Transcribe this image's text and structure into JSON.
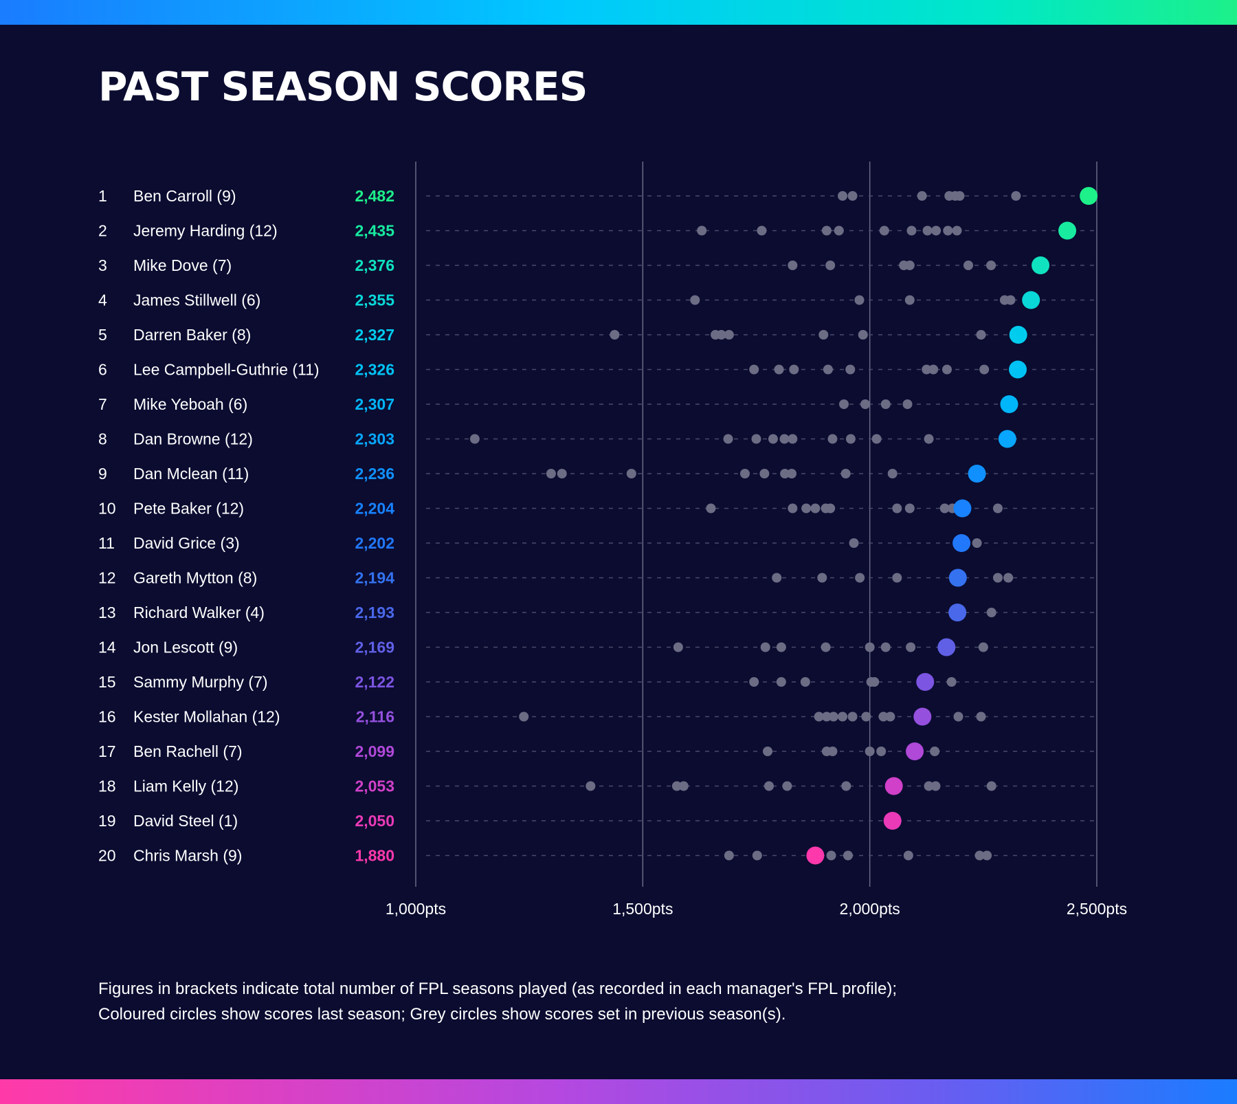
{
  "title": "PAST SEASON SCORES",
  "footnote": {
    "line1": "Figures in brackets indicate total number of FPL seasons played (as recorded in each manager's FPL profile);",
    "line2": "Coloured circles show scores last season; Grey circles show scores set in previous season(s)."
  },
  "chart_data": {
    "type": "scatter",
    "title": "PAST SEASON SCORES",
    "xlabel": "",
    "ylabel": "",
    "xlim": [
      1000,
      2500
    ],
    "x_ticks": [
      1000,
      1500,
      2000,
      2500
    ],
    "x_tick_labels": [
      "1,000pts",
      "1,500pts",
      "2,000pts",
      "2,500pts"
    ],
    "grid": true,
    "colors": {
      "background": "#0b0c30",
      "previous_season_dot": "#6c6d85",
      "gridline": "#6a6b86",
      "row_guide": "#4a4b6a"
    },
    "rows": [
      {
        "rank": "1",
        "name": "Ben Carroll (9)",
        "score_label": "2,482",
        "last_season": 2482,
        "color": "#1ef08a",
        "previous": [
          1940,
          1962,
          2115,
          2175,
          2188,
          2198,
          2322
        ]
      },
      {
        "rank": "2",
        "name": "Jeremy Harding (12)",
        "score_label": "2,435",
        "last_season": 2435,
        "color": "#18eba0",
        "previous": [
          1630,
          1762,
          1905,
          1932,
          2032,
          2092,
          2127,
          2146,
          2172,
          2192
        ]
      },
      {
        "rank": "3",
        "name": "Mike Dove (7)",
        "score_label": "2,376",
        "last_season": 2376,
        "color": "#10e2bf",
        "previous": [
          1830,
          1913,
          2075,
          2088,
          2217,
          2267
        ]
      },
      {
        "rank": "4",
        "name": "James Stillwell (6)",
        "score_label": "2,355",
        "last_season": 2355,
        "color": "#0ad8d8",
        "previous": [
          1615,
          1977,
          2088,
          2297,
          2310
        ]
      },
      {
        "rank": "5",
        "name": "Darren Baker (8)",
        "score_label": "2,327",
        "last_season": 2327,
        "color": "#00ccee",
        "previous": [
          1438,
          1660,
          1673,
          1690,
          1898,
          1985,
          2245
        ]
      },
      {
        "rank": "6",
        "name": "Lee Campbell-Guthrie (11)",
        "score_label": "2,326",
        "last_season": 2326,
        "color": "#00c2f5",
        "previous": [
          1745,
          1800,
          1833,
          1908,
          1957,
          2125,
          2140,
          2170,
          2252
        ]
      },
      {
        "rank": "7",
        "name": "Mike Yeboah (6)",
        "score_label": "2,307",
        "last_season": 2307,
        "color": "#00b6fb",
        "previous": [
          1943,
          1990,
          2035,
          2083
        ]
      },
      {
        "rank": "8",
        "name": "Dan Browne (12)",
        "score_label": "2,303",
        "last_season": 2303,
        "color": "#08a6ff",
        "previous": [
          1130,
          1688,
          1750,
          1787,
          1812,
          1830,
          1918,
          1958,
          2015,
          2130
        ]
      },
      {
        "rank": "9",
        "name": "Dan Mclean (11)",
        "score_label": "2,236",
        "last_season": 2236,
        "color": "#1090ff",
        "previous": [
          1298,
          1322,
          1475,
          1725,
          1768,
          1813,
          1828,
          1947,
          2050
        ]
      },
      {
        "rank": "10",
        "name": "Pete Baker (12)",
        "score_label": "2,204",
        "last_season": 2204,
        "color": "#1882ff",
        "previous": [
          1650,
          1830,
          1860,
          1880,
          1903,
          1913,
          2060,
          2088,
          2165,
          2182,
          2282
        ]
      },
      {
        "rank": "11",
        "name": "David Grice (3)",
        "score_label": "2,202",
        "last_season": 2202,
        "color": "#2278fa",
        "previous": [
          1965,
          2236
        ]
      },
      {
        "rank": "12",
        "name": "Gareth Mytton (8)",
        "score_label": "2,194",
        "last_season": 2194,
        "color": "#3472f0",
        "previous": [
          1795,
          1895,
          1978,
          2060,
          2282,
          2305
        ]
      },
      {
        "rank": "13",
        "name": "Richard Walker (4)",
        "score_label": "2,193",
        "last_season": 2193,
        "color": "#4a68ea",
        "previous": [
          2268
        ]
      },
      {
        "rank": "14",
        "name": "Jon Lescott (9)",
        "score_label": "2,169",
        "last_season": 2169,
        "color": "#6060e6",
        "previous": [
          1578,
          1770,
          1805,
          1903,
          2000,
          2035,
          2090,
          2250
        ]
      },
      {
        "rank": "15",
        "name": "Sammy Murphy (7)",
        "score_label": "2,122",
        "last_season": 2122,
        "color": "#7c55e2",
        "previous": [
          1745,
          1805,
          1858,
          2003,
          2010,
          2180
        ]
      },
      {
        "rank": "16",
        "name": "Kester Mollahan (12)",
        "score_label": "2,116",
        "last_season": 2116,
        "color": "#9550de",
        "previous": [
          1238,
          1888,
          1905,
          1920,
          1940,
          1962,
          1992,
          2030,
          2045,
          2195,
          2245
        ]
      },
      {
        "rank": "17",
        "name": "Ben Rachell (7)",
        "score_label": "2,099",
        "last_season": 2099,
        "color": "#b048d8",
        "previous": [
          1775,
          1905,
          1918,
          2000,
          2025,
          2143
        ]
      },
      {
        "rank": "18",
        "name": "Liam Kelly (12)",
        "score_label": "2,053",
        "last_season": 2053,
        "color": "#d040c8",
        "previous": [
          1385,
          1575,
          1590,
          1778,
          1818,
          1948,
          2130,
          2145,
          2268
        ]
      },
      {
        "rank": "19",
        "name": "David Steel (1)",
        "score_label": "2,050",
        "last_season": 2050,
        "color": "#ea3ab8",
        "previous": []
      },
      {
        "rank": "20",
        "name": "Chris Marsh (9)",
        "score_label": "1,880",
        "last_season": 1880,
        "color": "#ff38ac",
        "previous": [
          1690,
          1752,
          1915,
          1952,
          2085,
          2242,
          2258
        ]
      }
    ]
  }
}
